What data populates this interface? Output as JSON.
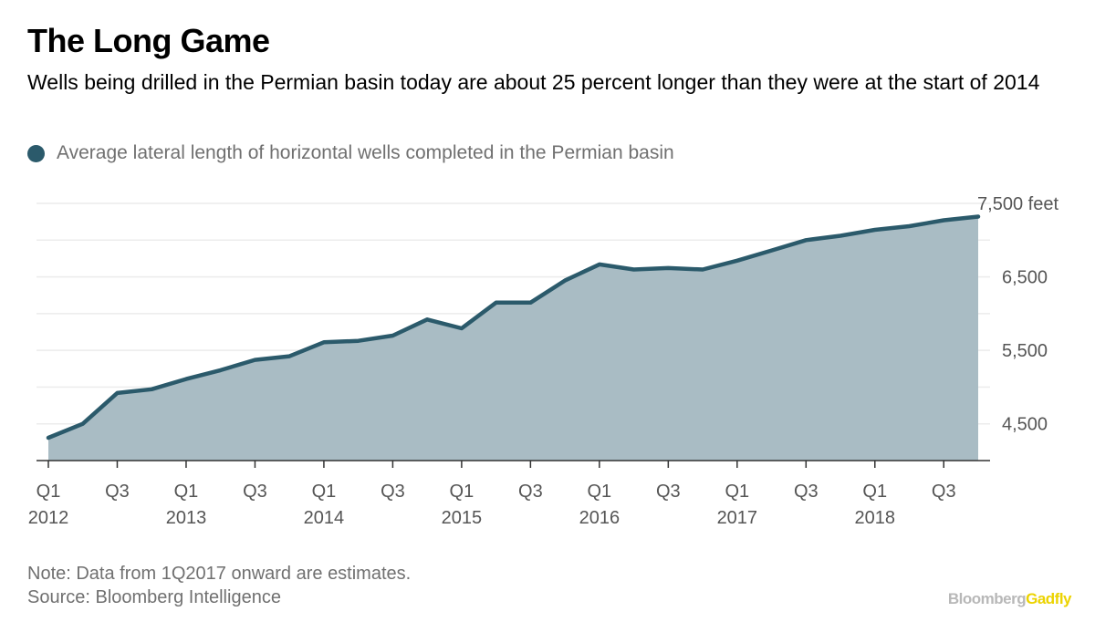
{
  "header": {
    "title": "The Long Game",
    "subtitle": "Wells being drilled in the Permian basin today are about 25 percent longer than they were at the start of 2014"
  },
  "legend": {
    "label": "Average lateral length of horizontal wells completed in the Permian basin"
  },
  "footer": {
    "note": "Note: Data from 1Q2017 onward are estimates.",
    "source": "Source: Bloomberg Intelligence",
    "brand_main": "Bloomberg",
    "brand_accent": "Gadfly"
  },
  "colors": {
    "line": "#2b5a6b",
    "area": "#a9bcc4",
    "accent": "#ecd300"
  },
  "chart_data": {
    "type": "area",
    "x": [
      "Q1 2012",
      "Q2 2012",
      "Q3 2012",
      "Q4 2012",
      "Q1 2013",
      "Q2 2013",
      "Q3 2013",
      "Q4 2013",
      "Q1 2014",
      "Q2 2014",
      "Q3 2014",
      "Q4 2014",
      "Q1 2015",
      "Q2 2015",
      "Q3 2015",
      "Q4 2015",
      "Q1 2016",
      "Q2 2016",
      "Q3 2016",
      "Q4 2016",
      "Q1 2017",
      "Q2 2017",
      "Q3 2017",
      "Q4 2017",
      "Q1 2018",
      "Q2 2018",
      "Q3 2018",
      "Q4 2018"
    ],
    "series": [
      {
        "name": "Average lateral length of horizontal wells completed in the Permian basin",
        "values": [
          4310,
          4500,
          4920,
          4970,
          5110,
          5230,
          5370,
          5420,
          5610,
          5630,
          5700,
          5920,
          5800,
          6150,
          6150,
          6450,
          6670,
          6600,
          6620,
          6600,
          6720,
          6860,
          7000,
          7060,
          7140,
          7190,
          7270,
          7320
        ]
      }
    ],
    "ylim": [
      4000,
      7500
    ],
    "y_ticks": [
      4500,
      5500,
      6500,
      7500
    ],
    "y_tick_labels": [
      "4,500",
      "5,500",
      "6,500",
      "7,500 feet"
    ],
    "x_tick_labels": [
      {
        "i": 0,
        "label": "Q1",
        "year": "2012"
      },
      {
        "i": 2,
        "label": "Q3",
        "year": ""
      },
      {
        "i": 4,
        "label": "Q1",
        "year": "2013"
      },
      {
        "i": 6,
        "label": "Q3",
        "year": ""
      },
      {
        "i": 8,
        "label": "Q1",
        "year": "2014"
      },
      {
        "i": 10,
        "label": "Q3",
        "year": ""
      },
      {
        "i": 12,
        "label": "Q1",
        "year": "2015"
      },
      {
        "i": 14,
        "label": "Q3",
        "year": ""
      },
      {
        "i": 16,
        "label": "Q1",
        "year": "2016"
      },
      {
        "i": 18,
        "label": "Q3",
        "year": ""
      },
      {
        "i": 20,
        "label": "Q1",
        "year": "2017"
      },
      {
        "i": 22,
        "label": "Q3",
        "year": ""
      },
      {
        "i": 24,
        "label": "Q1",
        "year": "2018"
      },
      {
        "i": 26,
        "label": "Q3",
        "year": ""
      }
    ],
    "grid": true,
    "legend_position": "top-left"
  }
}
